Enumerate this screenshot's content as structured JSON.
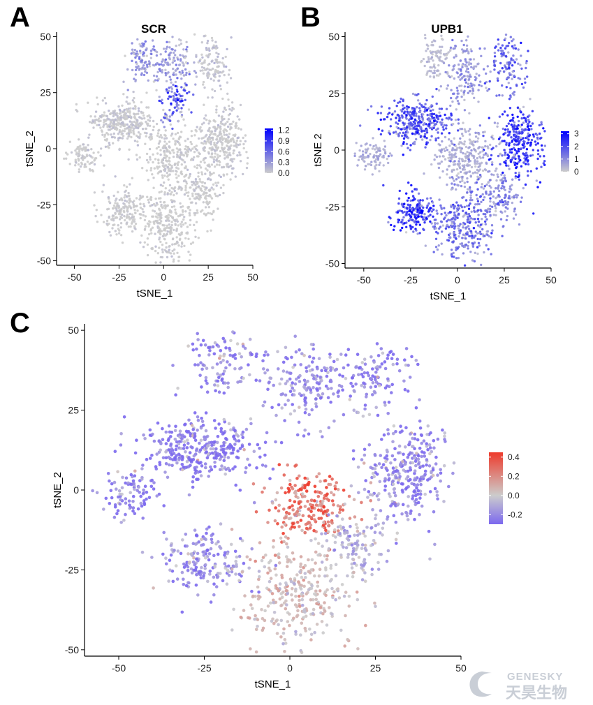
{
  "panels": [
    {
      "letter": "A",
      "title": "SCR"
    },
    {
      "letter": "B",
      "title": "UPB1"
    },
    {
      "letter": "C",
      "title": ""
    }
  ],
  "watermark": {
    "en": "GENESKY",
    "cn": "天昊生物"
  },
  "chart_data": [
    {
      "type": "scatter",
      "panel": "A",
      "title": "SCR",
      "xlabel": "tSNE_1",
      "ylabel": "tSNE_2",
      "xlim": [
        -60,
        50
      ],
      "ylim": [
        -52,
        52
      ],
      "xticks": [
        -50,
        -25,
        0,
        25,
        50
      ],
      "yticks": [
        -50,
        -25,
        0,
        25,
        50
      ],
      "grid": false,
      "legend_position": "right",
      "color_scale": {
        "low": "#cccccc",
        "high": "#0000ff",
        "min": 0.0,
        "max": 1.25,
        "tick_labels": [
          "1.2",
          "0.9",
          "0.6",
          "0.3",
          "0.0"
        ],
        "tick_values": [
          1.2,
          0.9,
          0.6,
          0.3,
          0.0
        ]
      },
      "clusters": [
        {
          "x": -12,
          "y": 40,
          "sx": 4,
          "sy": 5,
          "n": 90,
          "value": 0.35
        },
        {
          "x": 5,
          "y": 37,
          "sx": 6,
          "sy": 7,
          "n": 140,
          "value": 0.3
        },
        {
          "x": 8,
          "y": 22,
          "sx": 4,
          "sy": 3,
          "n": 60,
          "value": 0.8
        },
        {
          "x": 27,
          "y": 38,
          "sx": 5,
          "sy": 7,
          "n": 120,
          "value": 0.05
        },
        {
          "x": 2,
          "y": 13,
          "sx": 3,
          "sy": 2,
          "n": 20,
          "value": 0.5
        },
        {
          "x": -22,
          "y": 12,
          "sx": 9,
          "sy": 5,
          "n": 330,
          "value": 0.02
        },
        {
          "x": 33,
          "y": 4,
          "sx": 7,
          "sy": 8,
          "n": 300,
          "value": 0.02
        },
        {
          "x": 5,
          "y": -3,
          "sx": 8,
          "sy": 7,
          "n": 260,
          "value": 0.0
        },
        {
          "x": -45,
          "y": -3,
          "sx": 5,
          "sy": 3,
          "n": 90,
          "value": 0.0
        },
        {
          "x": -23,
          "y": -28,
          "sx": 6,
          "sy": 5,
          "n": 180,
          "value": 0.0
        },
        {
          "x": 3,
          "y": -33,
          "sx": 8,
          "sy": 9,
          "n": 320,
          "value": 0.0
        },
        {
          "x": 22,
          "y": -20,
          "sx": 5,
          "sy": 6,
          "n": 130,
          "value": 0.0
        }
      ]
    },
    {
      "type": "scatter",
      "panel": "B",
      "title": "UPB1",
      "xlabel": "tSNE_1",
      "ylabel": "tSNE 2",
      "xlim": [
        -60,
        50
      ],
      "ylim": [
        -52,
        52
      ],
      "xticks": [
        -50,
        -25,
        0,
        25,
        50
      ],
      "yticks": [
        -50,
        -25,
        0,
        25,
        50
      ],
      "grid": false,
      "legend_position": "right",
      "color_scale": {
        "low": "#cccccc",
        "high": "#0000ff",
        "min": 0.0,
        "max": 3.2,
        "tick_labels": [
          "3",
          "2",
          "1",
          "0"
        ],
        "tick_values": [
          3,
          2,
          1,
          0
        ]
      },
      "clusters": [
        {
          "x": -12,
          "y": 40,
          "sx": 4,
          "sy": 5,
          "n": 90,
          "value": 0.3
        },
        {
          "x": 5,
          "y": 33,
          "sx": 6,
          "sy": 7,
          "n": 160,
          "value": 0.9
        },
        {
          "x": 27,
          "y": 38,
          "sx": 5,
          "sy": 7,
          "n": 120,
          "value": 1.6
        },
        {
          "x": -22,
          "y": 12,
          "sx": 9,
          "sy": 5,
          "n": 330,
          "value": 1.9
        },
        {
          "x": 33,
          "y": 4,
          "sx": 7,
          "sy": 8,
          "n": 300,
          "value": 2.4
        },
        {
          "x": 5,
          "y": -3,
          "sx": 8,
          "sy": 7,
          "n": 260,
          "value": 0.5
        },
        {
          "x": -45,
          "y": -3,
          "sx": 5,
          "sy": 3,
          "n": 90,
          "value": 0.5
        },
        {
          "x": -23,
          "y": -28,
          "sx": 6,
          "sy": 5,
          "n": 180,
          "value": 2.4
        },
        {
          "x": 3,
          "y": -33,
          "sx": 8,
          "sy": 9,
          "n": 320,
          "value": 1.4
        },
        {
          "x": 22,
          "y": -20,
          "sx": 5,
          "sy": 6,
          "n": 130,
          "value": 1.1
        }
      ]
    },
    {
      "type": "scatter",
      "panel": "C",
      "title": "",
      "xlabel": "tSNE_1",
      "ylabel": "tSNE_2",
      "xlim": [
        -60,
        50
      ],
      "ylim": [
        -52,
        52
      ],
      "xticks": [
        -50,
        -25,
        0,
        25,
        50
      ],
      "yticks": [
        -50,
        -25,
        0,
        25,
        50
      ],
      "grid": false,
      "legend_position": "right",
      "color_scale": {
        "low": "#7b68ee",
        "mid": "#cccccc",
        "high": "#ee3b2c",
        "min": -0.3,
        "midpoint": 0.0,
        "max": 0.45,
        "tick_labels": [
          "0.4",
          "0.2",
          "0.0",
          "-0.2"
        ],
        "tick_values": [
          0.4,
          0.2,
          0.0,
          -0.2
        ]
      },
      "clusters": [
        {
          "x": -20,
          "y": 40,
          "sx": 5,
          "sy": 5,
          "n": 110,
          "value": -0.25
        },
        {
          "x": 4,
          "y": 33,
          "sx": 7,
          "sy": 7,
          "n": 170,
          "value": -0.2
        },
        {
          "x": 25,
          "y": 36,
          "sx": 6,
          "sy": 5,
          "n": 110,
          "value": -0.25
        },
        {
          "x": -26,
          "y": 13,
          "sx": 9,
          "sy": 5,
          "n": 330,
          "value": -0.28
        },
        {
          "x": 34,
          "y": 5,
          "sx": 7,
          "sy": 8,
          "n": 300,
          "value": -0.22
        },
        {
          "x": 6,
          "y": -5,
          "sx": 6,
          "sy": 5,
          "n": 220,
          "value": 0.28
        },
        {
          "x": -47,
          "y": -2,
          "sx": 5,
          "sy": 4,
          "n": 90,
          "value": -0.25
        },
        {
          "x": -25,
          "y": -22,
          "sx": 6,
          "sy": 5,
          "n": 180,
          "value": -0.2
        },
        {
          "x": 2,
          "y": -33,
          "sx": 8,
          "sy": 9,
          "n": 320,
          "value": 0.05
        },
        {
          "x": 20,
          "y": -17,
          "sx": 5,
          "sy": 5,
          "n": 130,
          "value": -0.08
        }
      ]
    }
  ]
}
